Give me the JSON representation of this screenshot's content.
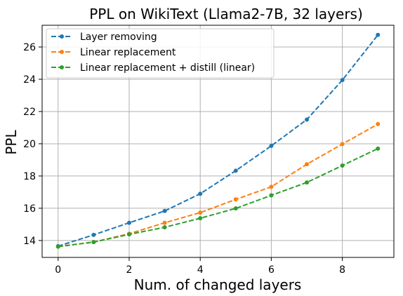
{
  "chart_data": {
    "type": "line",
    "title": "PPL on WikiText (Llama2-7B, 32 layers)",
    "xlabel": "Num. of changed layers",
    "ylabel": "PPL",
    "xlim": [
      -0.45,
      9.45
    ],
    "ylim": [
      12.95,
      27.35
    ],
    "xticks": [
      0,
      2,
      4,
      6,
      8
    ],
    "yticks": [
      14,
      16,
      18,
      20,
      22,
      24,
      26
    ],
    "grid": true,
    "legend_position": "top-left",
    "x": [
      0,
      1,
      2,
      3,
      4,
      5,
      6,
      7,
      8,
      9
    ],
    "series": [
      {
        "name": "Layer removing",
        "color": "#1f77b4",
        "values": [
          13.65,
          14.35,
          15.1,
          15.83,
          16.9,
          18.33,
          19.87,
          21.5,
          23.95,
          26.75
        ]
      },
      {
        "name": "Linear replacement",
        "color": "#ff7f0e",
        "values": [
          13.63,
          13.9,
          14.42,
          15.1,
          15.73,
          16.55,
          17.33,
          18.73,
          19.98,
          21.22
        ]
      },
      {
        "name": "Linear replacement + distill (linear)",
        "color": "#2ca02c",
        "values": [
          13.62,
          13.9,
          14.38,
          14.82,
          15.38,
          15.99,
          16.8,
          17.6,
          18.65,
          19.7
        ]
      }
    ]
  }
}
